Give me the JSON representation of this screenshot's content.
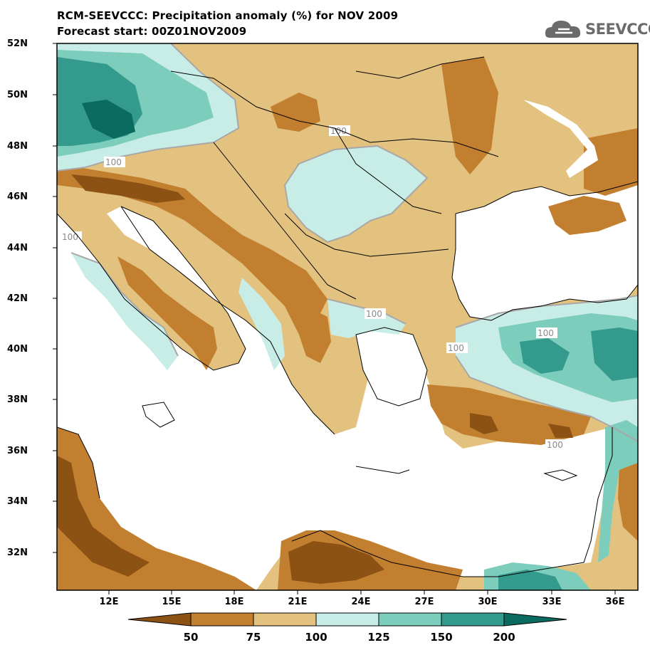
{
  "title_line1": "RCM-SEEVCCC: Precipitation anomaly (%) for NOV 2009",
  "title_line2": "Forecast start: 00Z01NOV2009",
  "logo_text": "SEEVCCC",
  "lat_labels": [
    "52N",
    "50N",
    "48N",
    "46N",
    "44N",
    "42N",
    "40N",
    "38N",
    "36N",
    "34N",
    "32N"
  ],
  "lon_labels": [
    "12E",
    "15E",
    "18E",
    "21E",
    "24E",
    "27E",
    "30E",
    "33E",
    "36E"
  ],
  "contour_label": "100",
  "colorbar": {
    "labels": [
      "50",
      "75",
      "100",
      "125",
      "150",
      "200"
    ],
    "colors": [
      "#8b5213",
      "#c27f30",
      "#e3c27f",
      "#c8ede6",
      "#7ccdbc",
      "#349a8d",
      "#0b6b60"
    ]
  }
}
